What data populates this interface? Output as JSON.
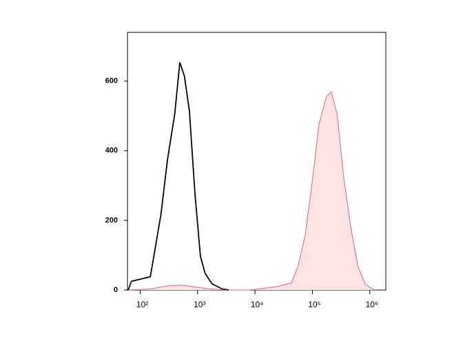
{
  "chart_data": {
    "type": "line",
    "xscale": "log",
    "xlim": [
      60,
      1900000
    ],
    "ylim": [
      0,
      740
    ],
    "xticks": [
      {
        "value": 100,
        "label": "10²"
      },
      {
        "value": 1000,
        "label": "10³"
      },
      {
        "value": 10000,
        "label": "10⁴"
      },
      {
        "value": 100000,
        "label": "10⁵"
      },
      {
        "value": 1000000,
        "label": "10⁶"
      }
    ],
    "yticks": [
      0,
      200,
      400,
      600
    ],
    "series": [
      {
        "color": "#000000",
        "fill": null,
        "x": [
          62,
          70,
          150,
          230,
          300,
          400,
          490,
          590,
          720,
          900,
          1120,
          1350,
          1780,
          2700,
          3500
        ],
        "values": [
          0,
          25,
          38,
          217,
          376,
          505,
          654,
          614,
          515,
          276,
          97,
          48,
          18,
          3,
          0
        ]
      },
      {
        "color": "#e8607a",
        "fill": "#fde3e3",
        "x": [
          62,
          150,
          300,
          500,
          800,
          1500,
          3000,
          8000,
          24500,
          43000,
          56000,
          75000,
          100000,
          130000,
          175000,
          213000,
          270000,
          355000,
          470000,
          620000,
          830000,
          1100000,
          1300000
        ],
        "values": [
          0,
          3,
          12,
          14,
          10,
          4,
          0,
          0,
          10,
          20,
          68,
          157,
          316,
          475,
          555,
          569,
          505,
          316,
          177,
          68,
          18,
          3,
          0
        ]
      }
    ]
  }
}
